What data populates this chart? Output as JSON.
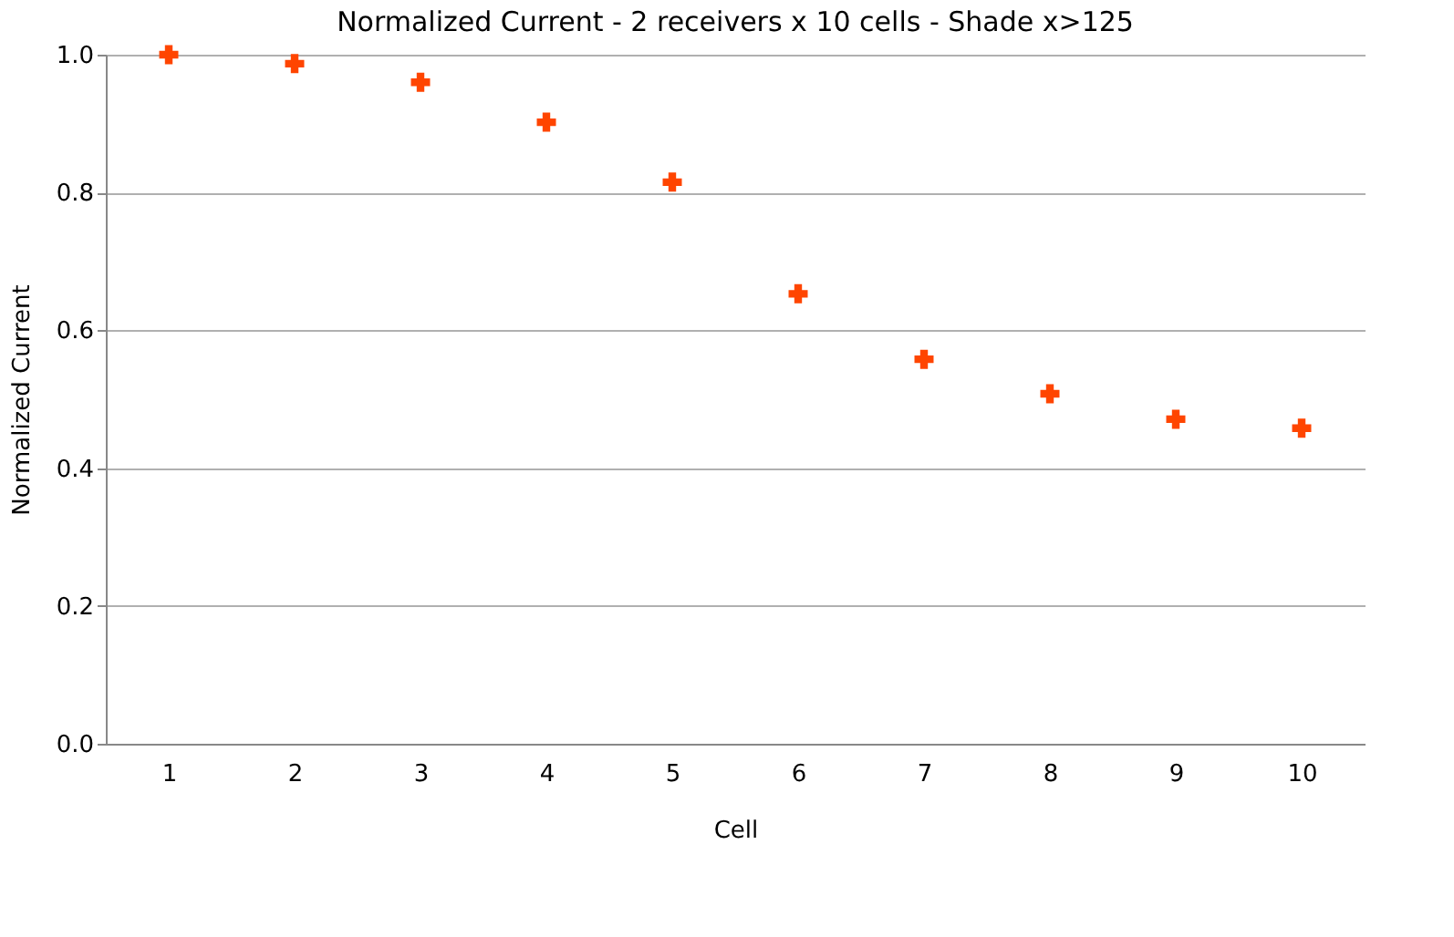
{
  "chart_data": {
    "type": "scatter",
    "title": "Normalized Current - 2 receivers x 10 cells - Shade x>125",
    "xlabel": "Cell",
    "ylabel": "Normalized Current",
    "categories": [
      "1",
      "2",
      "3",
      "4",
      "5",
      "6",
      "7",
      "8",
      "9",
      "10"
    ],
    "series": [
      {
        "color": "#ff4500",
        "values": [
          1.0,
          0.987,
          0.96,
          0.902,
          0.815,
          0.653,
          0.558,
          0.508,
          0.471,
          0.458
        ]
      }
    ],
    "ylim": [
      0,
      1.0
    ],
    "yticks": [
      {
        "value": 0,
        "label": "0.0"
      },
      {
        "value": 0.2,
        "label": "0.2"
      },
      {
        "value": 0.4,
        "label": "0.4"
      },
      {
        "value": 0.6,
        "label": "0.6"
      },
      {
        "value": 0.8,
        "label": "0.8"
      },
      {
        "value": 1.0,
        "label": "1.0"
      }
    ],
    "grid": "y",
    "marker": "cross",
    "legend": false
  }
}
